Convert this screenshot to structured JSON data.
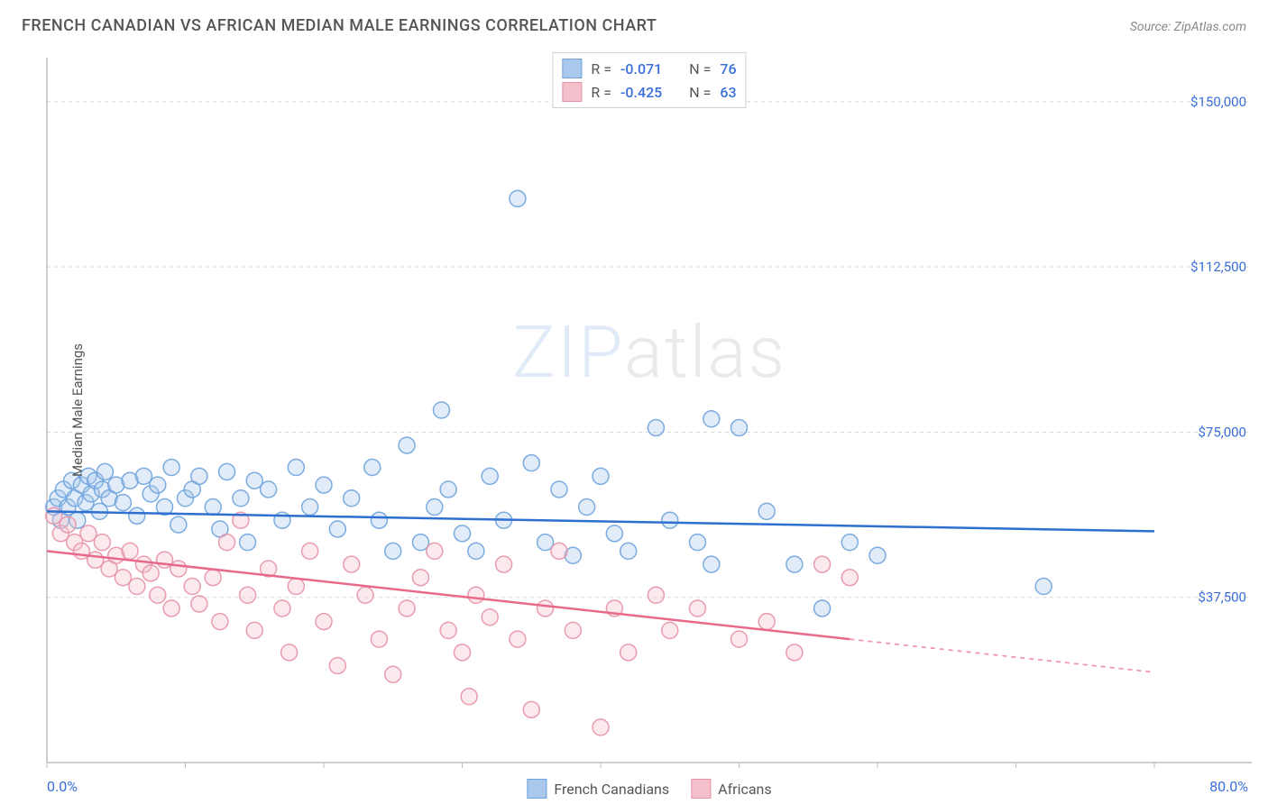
{
  "header": {
    "title": "FRENCH CANADIAN VS AFRICAN MEDIAN MALE EARNINGS CORRELATION CHART",
    "source_prefix": "Source: ",
    "source_name": "ZipAtlas.com"
  },
  "watermark": {
    "part1": "ZIP",
    "part2": "atlas"
  },
  "chart": {
    "type": "scatter",
    "ylabel": "Median Male Earnings",
    "xlim": [
      0,
      80
    ],
    "ylim": [
      0,
      160000
    ],
    "x_tick_min_label": "0.0%",
    "x_tick_max_label": "80.0%",
    "y_ticks": [
      37500,
      75000,
      112500,
      150000
    ],
    "y_tick_labels": [
      "$37,500",
      "$75,000",
      "$112,500",
      "$150,000"
    ],
    "grid_color": "#d8d8d8",
    "axis_color": "#bfbfbf",
    "background_color": "#ffffff",
    "marker_radius": 9,
    "marker_fill_opacity": 0.35,
    "marker_stroke_opacity": 0.9,
    "marker_stroke_width": 1.5,
    "line_width": 2.5,
    "series": [
      {
        "key": "french_canadians",
        "label": "French Canadians",
        "color_fill": "#a9c8ec",
        "color_stroke": "#6ea3de",
        "line_color": "#2f6fd0",
        "R": "-0.071",
        "N": "76",
        "trend": {
          "x1": 0,
          "y1": 57000,
          "x2": 80,
          "y2": 52500,
          "extrap_from_x": 80
        },
        "points": [
          [
            0.5,
            58000
          ],
          [
            0.8,
            60000
          ],
          [
            1.0,
            55000
          ],
          [
            1.2,
            62000
          ],
          [
            1.5,
            58000
          ],
          [
            1.8,
            64000
          ],
          [
            2.0,
            60000
          ],
          [
            2.2,
            55000
          ],
          [
            2.5,
            63000
          ],
          [
            2.8,
            59000
          ],
          [
            3.0,
            65000
          ],
          [
            3.2,
            61000
          ],
          [
            3.5,
            64000
          ],
          [
            3.8,
            57000
          ],
          [
            4.0,
            62000
          ],
          [
            4.2,
            66000
          ],
          [
            4.5,
            60000
          ],
          [
            5.0,
            63000
          ],
          [
            5.5,
            59000
          ],
          [
            6.0,
            64000
          ],
          [
            6.5,
            56000
          ],
          [
            7.0,
            65000
          ],
          [
            7.5,
            61000
          ],
          [
            8.0,
            63000
          ],
          [
            8.5,
            58000
          ],
          [
            9.0,
            67000
          ],
          [
            9.5,
            54000
          ],
          [
            10.0,
            60000
          ],
          [
            10.5,
            62000
          ],
          [
            11.0,
            65000
          ],
          [
            12.0,
            58000
          ],
          [
            12.5,
            53000
          ],
          [
            13.0,
            66000
          ],
          [
            14.0,
            60000
          ],
          [
            14.5,
            50000
          ],
          [
            15.0,
            64000
          ],
          [
            16.0,
            62000
          ],
          [
            17.0,
            55000
          ],
          [
            18.0,
            67000
          ],
          [
            19.0,
            58000
          ],
          [
            20.0,
            63000
          ],
          [
            21.0,
            53000
          ],
          [
            22.0,
            60000
          ],
          [
            23.5,
            67000
          ],
          [
            24.0,
            55000
          ],
          [
            25.0,
            48000
          ],
          [
            26.0,
            72000
          ],
          [
            27.0,
            50000
          ],
          [
            28.0,
            58000
          ],
          [
            28.5,
            80000
          ],
          [
            29.0,
            62000
          ],
          [
            30.0,
            52000
          ],
          [
            31.0,
            48000
          ],
          [
            32.0,
            65000
          ],
          [
            33.0,
            55000
          ],
          [
            34.0,
            128000
          ],
          [
            35.0,
            68000
          ],
          [
            36.0,
            50000
          ],
          [
            37.0,
            62000
          ],
          [
            38.0,
            47000
          ],
          [
            39.0,
            58000
          ],
          [
            40.0,
            65000
          ],
          [
            41.0,
            52000
          ],
          [
            42.0,
            48000
          ],
          [
            44.0,
            76000
          ],
          [
            45.0,
            55000
          ],
          [
            47.0,
            50000
          ],
          [
            48.0,
            45000
          ],
          [
            50.0,
            76000
          ],
          [
            52.0,
            57000
          ],
          [
            54.0,
            45000
          ],
          [
            56.0,
            35000
          ],
          [
            58.0,
            50000
          ],
          [
            60.0,
            47000
          ],
          [
            72.0,
            40000
          ],
          [
            48.0,
            78000
          ]
        ]
      },
      {
        "key": "africans",
        "label": "Africans",
        "color_fill": "#f4c0cc",
        "color_stroke": "#e792a7",
        "line_color": "#e86a8a",
        "R": "-0.425",
        "N": "63",
        "trend": {
          "x1": 0,
          "y1": 48000,
          "x2": 58,
          "y2": 28000,
          "extrap_from_x": 58,
          "extrap_x2": 80,
          "extrap_y2": 20500
        },
        "points": [
          [
            0.5,
            56000
          ],
          [
            1.0,
            52000
          ],
          [
            1.5,
            54000
          ],
          [
            2.0,
            50000
          ],
          [
            2.5,
            48000
          ],
          [
            3.0,
            52000
          ],
          [
            3.5,
            46000
          ],
          [
            4.0,
            50000
          ],
          [
            4.5,
            44000
          ],
          [
            5.0,
            47000
          ],
          [
            5.5,
            42000
          ],
          [
            6.0,
            48000
          ],
          [
            6.5,
            40000
          ],
          [
            7.0,
            45000
          ],
          [
            7.5,
            43000
          ],
          [
            8.0,
            38000
          ],
          [
            8.5,
            46000
          ],
          [
            9.0,
            35000
          ],
          [
            9.5,
            44000
          ],
          [
            10.5,
            40000
          ],
          [
            11.0,
            36000
          ],
          [
            12.0,
            42000
          ],
          [
            12.5,
            32000
          ],
          [
            13.0,
            50000
          ],
          [
            14.0,
            55000
          ],
          [
            14.5,
            38000
          ],
          [
            15.0,
            30000
          ],
          [
            16.0,
            44000
          ],
          [
            17.0,
            35000
          ],
          [
            17.5,
            25000
          ],
          [
            18.0,
            40000
          ],
          [
            19.0,
            48000
          ],
          [
            20.0,
            32000
          ],
          [
            21.0,
            22000
          ],
          [
            22.0,
            45000
          ],
          [
            23.0,
            38000
          ],
          [
            24.0,
            28000
          ],
          [
            25.0,
            20000
          ],
          [
            26.0,
            35000
          ],
          [
            27.0,
            42000
          ],
          [
            28.0,
            48000
          ],
          [
            29.0,
            30000
          ],
          [
            30.0,
            25000
          ],
          [
            31.0,
            38000
          ],
          [
            32.0,
            33000
          ],
          [
            33.0,
            45000
          ],
          [
            34.0,
            28000
          ],
          [
            35.0,
            12000
          ],
          [
            36.0,
            35000
          ],
          [
            37.0,
            48000
          ],
          [
            38.0,
            30000
          ],
          [
            40.0,
            8000
          ],
          [
            41.0,
            35000
          ],
          [
            42.0,
            25000
          ],
          [
            44.0,
            38000
          ],
          [
            45.0,
            30000
          ],
          [
            47.0,
            35000
          ],
          [
            50.0,
            28000
          ],
          [
            52.0,
            32000
          ],
          [
            54.0,
            25000
          ],
          [
            56.0,
            45000
          ],
          [
            58.0,
            42000
          ],
          [
            30.5,
            15000
          ]
        ]
      }
    ],
    "legend_top": {
      "r_label": "R  =",
      "n_label": "N  ="
    }
  }
}
